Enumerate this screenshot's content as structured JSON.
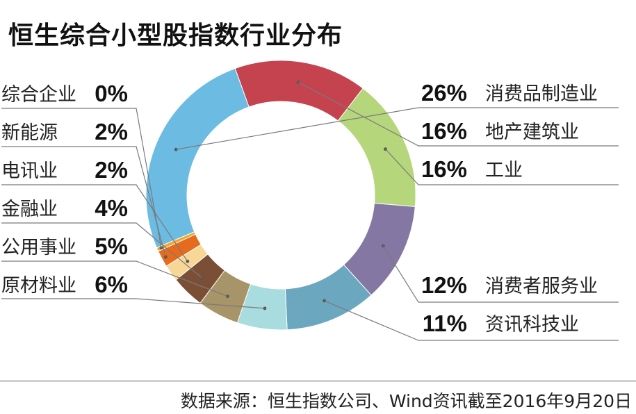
{
  "title": "恒生综合小型股指数行业分布",
  "source": "数据来源：恒生指数公司、Wind资讯截至2016年9月20日",
  "chart_data": {
    "type": "pie",
    "title": "恒生综合小型股指数行业分布",
    "donut": true,
    "unit": "%",
    "categories": [
      "消费品制造业",
      "地产建筑业",
      "工业",
      "消费者服务业",
      "资讯科技业",
      "原材料业",
      "公用事业",
      "金融业",
      "电讯业",
      "新能源",
      "综合企业"
    ],
    "values": [
      26,
      16,
      16,
      12,
      11,
      6,
      5,
      4,
      2,
      2,
      0
    ],
    "labels": [
      "26%",
      "16%",
      "16%",
      "12%",
      "11%",
      "6%",
      "5%",
      "4%",
      "2%",
      "2%",
      "0%"
    ],
    "colors": [
      "#6cbbe3",
      "#c4434f",
      "#b5d67a",
      "#8577a3",
      "#6ba7bf",
      "#a8dcde",
      "#a79468",
      "#7b4f35",
      "#f7d796",
      "#e66b1e",
      "#f0a62a"
    ]
  }
}
